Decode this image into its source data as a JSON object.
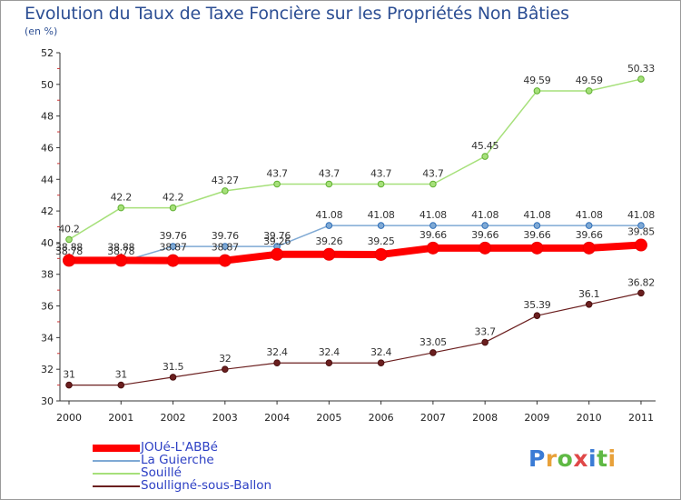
{
  "title": "Evolution du Taux de Taxe Foncière sur les Propriétés Non Bâties",
  "subtitle": "(en %)",
  "logo": {
    "text": "Proxiti",
    "letters": [
      "P",
      "r",
      "o",
      "x",
      "i",
      "t",
      "i"
    ],
    "colors": [
      "#3a7bd5",
      "#e8a13a",
      "#5fb944",
      "#e04848",
      "#3a7bd5",
      "#5fb944",
      "#e8a13a"
    ]
  },
  "chart_data": {
    "type": "line",
    "title": "Evolution du Taux de Taxe Foncière sur les Propriétés Non Bâties",
    "ylabel": "(en %)",
    "x": [
      "2000",
      "2001",
      "2002",
      "2003",
      "2004",
      "2005",
      "2006",
      "2007",
      "2008",
      "2009",
      "2010",
      "2011"
    ],
    "ylim": [
      30,
      52
    ],
    "yticks": [
      "30",
      "32",
      "34",
      "36",
      "38",
      "40",
      "42",
      "44",
      "46",
      "48",
      "50",
      "52"
    ],
    "series": [
      {
        "name": "Soulligné-sous-Ballon",
        "color": "#6b1f1f",
        "width": 1.2,
        "values": [
          31,
          31,
          31.5,
          32,
          32.4,
          32.4,
          32.4,
          33.05,
          33.7,
          35.39,
          36.1,
          36.82
        ],
        "labels": [
          "31",
          "31",
          "31.5",
          "32",
          "32.4",
          "32.4",
          "32.4",
          "33.05",
          "33.7",
          "35.39",
          "36.1",
          "36.82"
        ]
      },
      {
        "name": "La Guierche",
        "color": "#7fa9d4",
        "width": 1.5,
        "values": [
          38.78,
          38.78,
          39.76,
          39.76,
          39.76,
          41.08,
          41.08,
          41.08,
          41.08,
          41.08,
          41.08,
          41.08
        ],
        "labels": [
          "38.78",
          "38.78",
          "39.76",
          "39.76",
          "39.76",
          "41.08",
          "41.08",
          "41.08",
          "41.08",
          "41.08",
          "41.08",
          "41.08"
        ]
      },
      {
        "name": "Souillé",
        "color": "#a6e07a",
        "width": 1.5,
        "values": [
          40.2,
          42.2,
          42.2,
          43.27,
          43.7,
          43.7,
          43.7,
          43.7,
          45.45,
          49.59,
          49.59,
          50.33
        ],
        "labels": [
          "40.2",
          "42.2",
          "42.2",
          "43.27",
          "43.7",
          "43.7",
          "43.7",
          "43.7",
          "45.45",
          "49.59",
          "49.59",
          "50.33"
        ]
      },
      {
        "name": "JOUé-L'ABBé",
        "color": "#ff0000",
        "width": 8,
        "values": [
          38.88,
          38.88,
          38.87,
          38.87,
          39.26,
          39.26,
          39.25,
          39.66,
          39.66,
          39.66,
          39.66,
          39.85
        ],
        "labels": [
          "38.88",
          "38.88",
          "38.87",
          "38.87",
          "39.26",
          "39.26",
          "39.25",
          "39.66",
          "39.66",
          "39.66",
          "39.66",
          "39.85"
        ]
      }
    ],
    "legend": [
      "JOUé-L'ABBé",
      "La Guierche",
      "Souillé",
      "Soulligné-sous-Ballon"
    ],
    "grid": false
  }
}
